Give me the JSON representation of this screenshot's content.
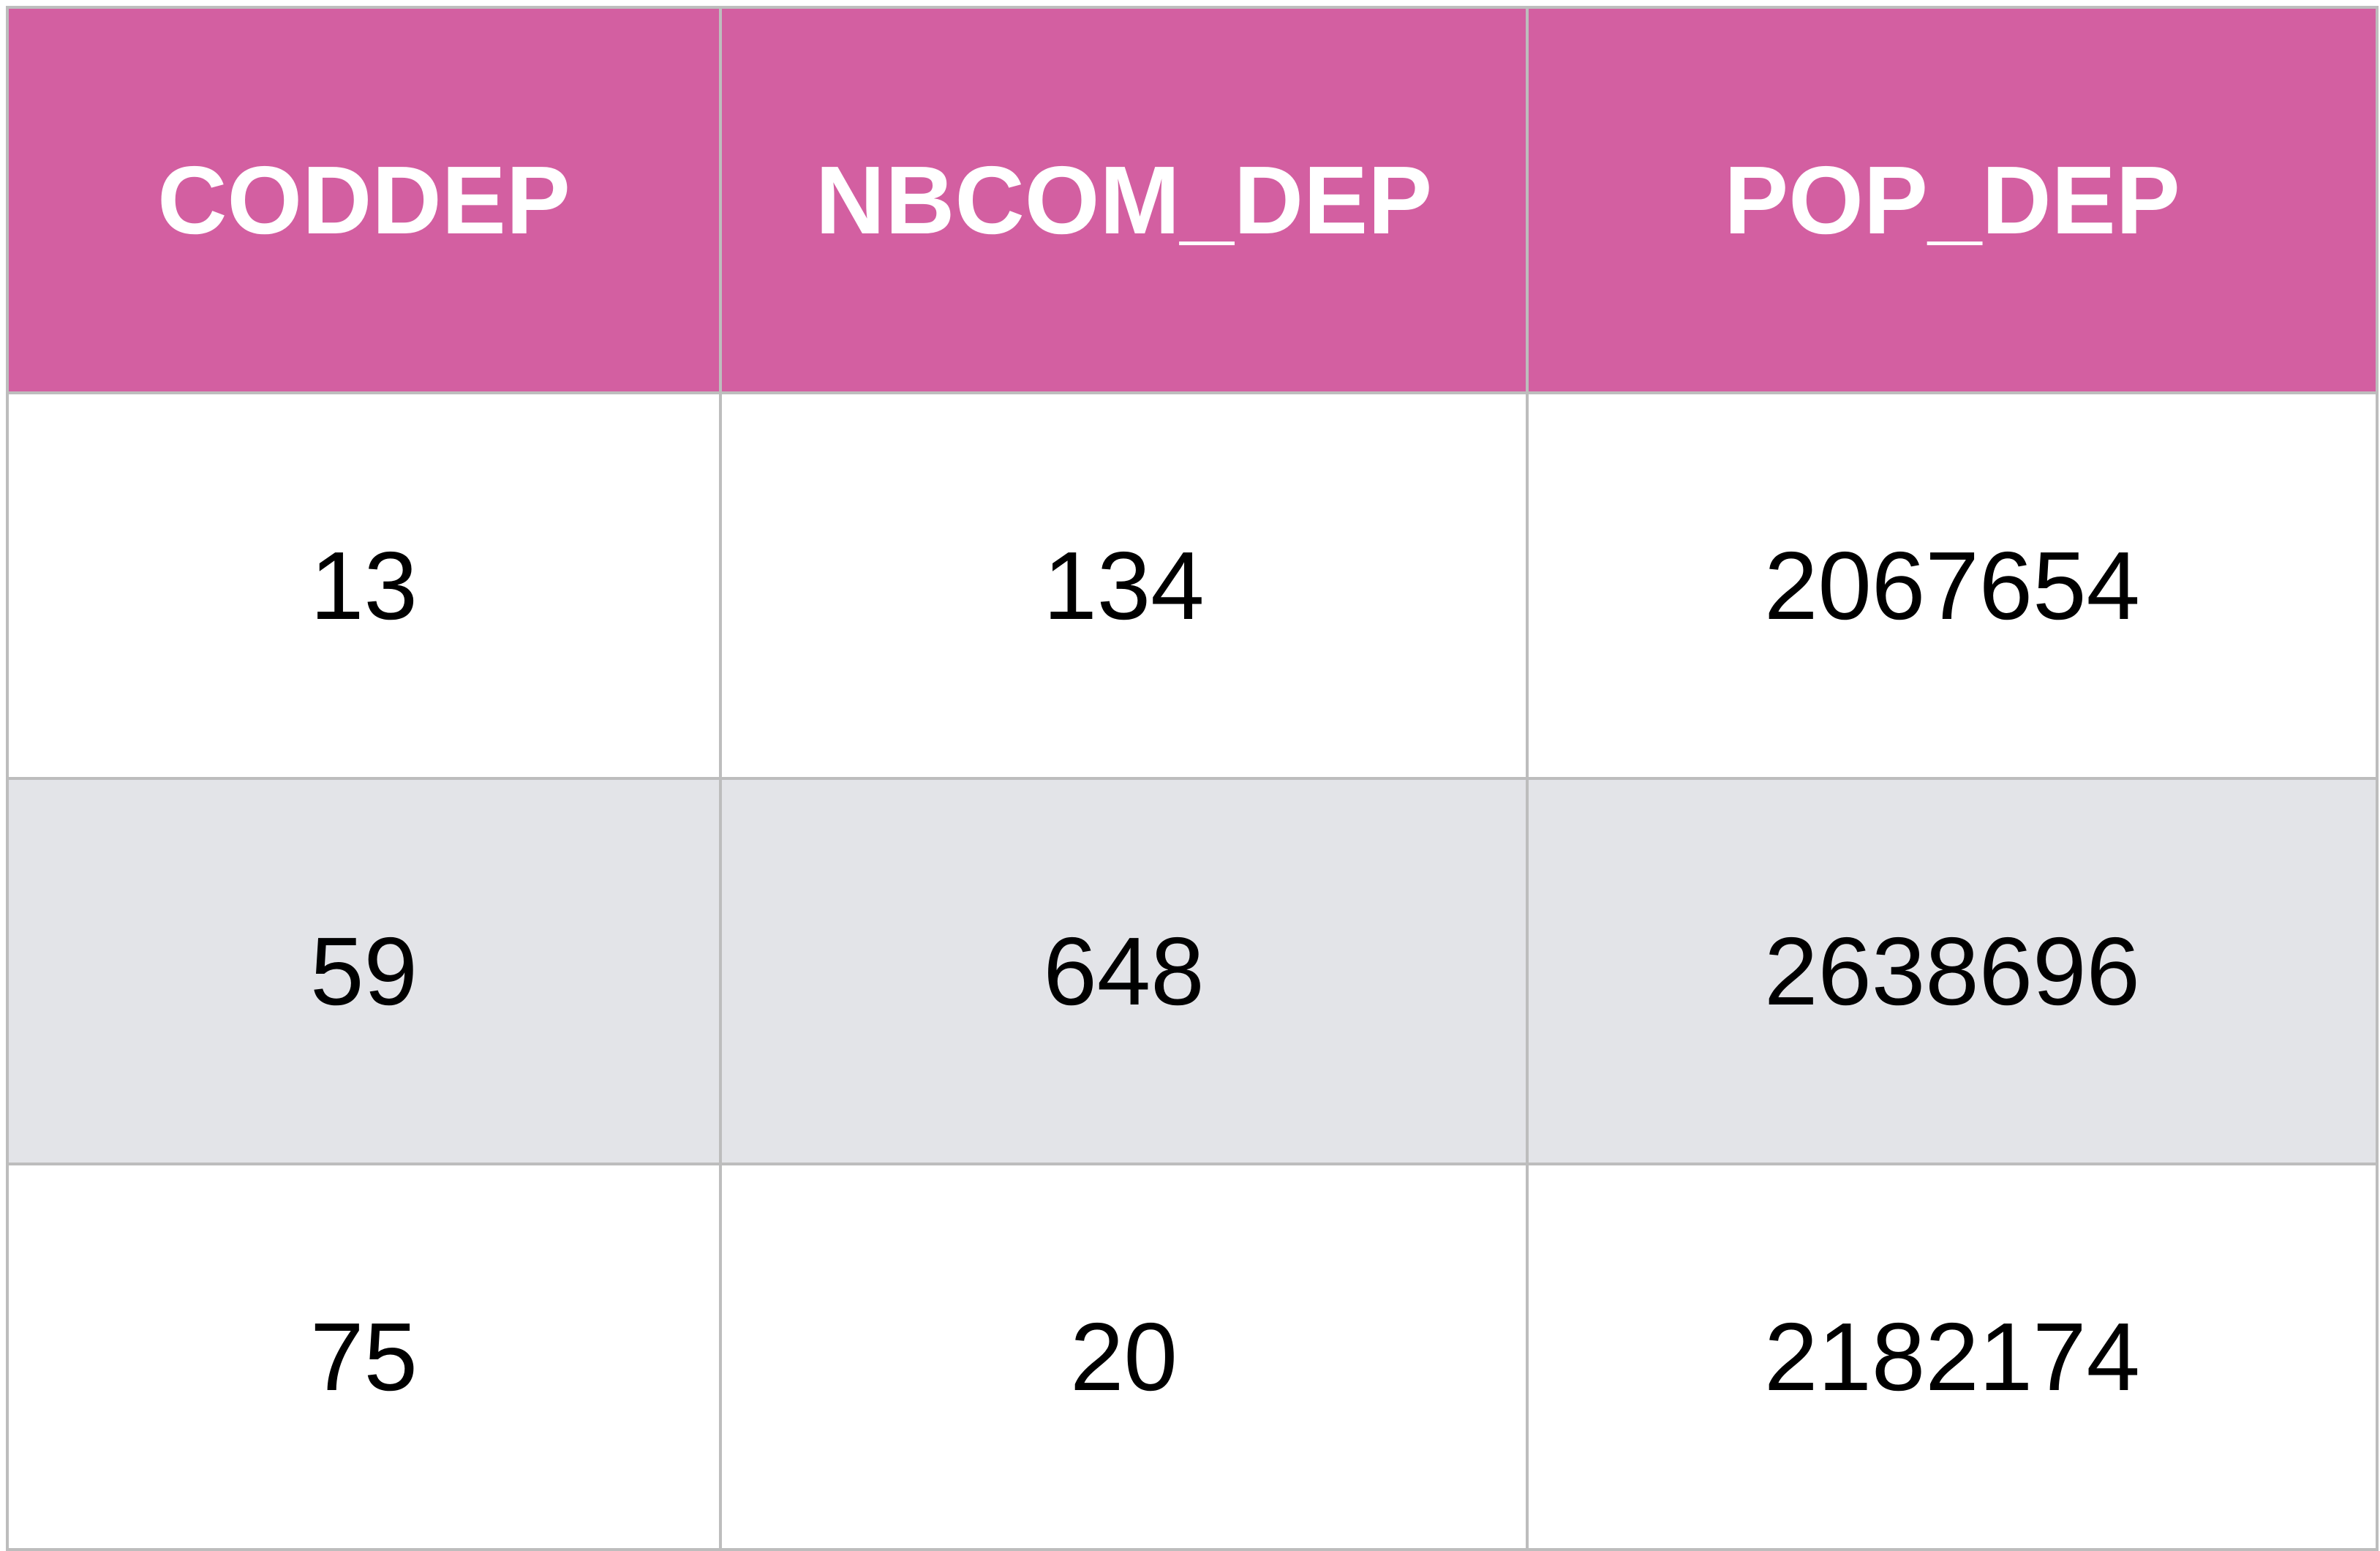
{
  "table": {
    "header_color": "#d35fa1",
    "stripe_color": "#e3e4e8",
    "columns": [
      "CODDEP",
      "NBCOM_DEP",
      "POP_DEP"
    ],
    "rows": [
      [
        "13",
        "134",
        "2067654"
      ],
      [
        "59",
        "648",
        "2638696"
      ],
      [
        "75",
        "20",
        "2182174"
      ]
    ]
  }
}
